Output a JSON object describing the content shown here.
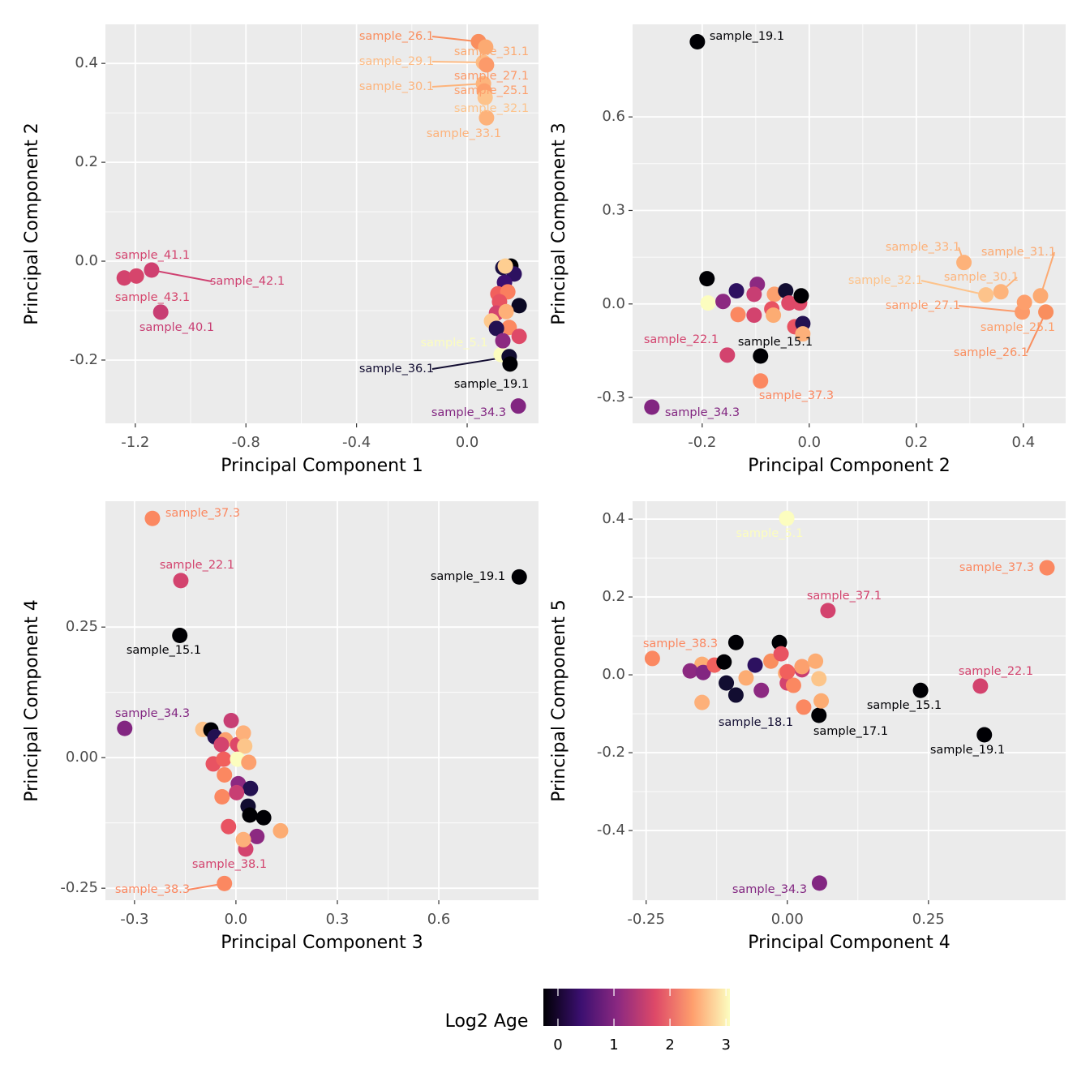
{
  "chart_data": [
    {
      "type": "scatter",
      "xlabel": "Principal Component 1",
      "ylabel": "Principal Component 2",
      "xlim": [
        -1.308,
        0.258
      ],
      "ylim": [
        -0.328,
        0.479
      ],
      "xticks": [
        -1.2,
        -0.8,
        -0.4,
        {
          "value": 0,
          "label": "0.0"
        }
      ],
      "yticks": [
        -0.2,
        {
          "value": 0,
          "label": "0.0"
        },
        0.2,
        0.4
      ],
      "x": [
        0.041,
        0.067,
        0.059,
        0.07,
        0.059,
        0.062,
        0.065,
        0.07,
        -1.24,
        -1.141,
        -1.196,
        -1.108,
        0.123,
        0.152,
        0.155,
        0.185,
        0.158,
        0.129,
        0.17,
        0.135,
        0.111,
        0.147,
        0.117,
        0.188,
        0.106,
        0.141,
        0.088,
        0.152,
        0.106,
        0.188,
        0.129,
        0.138
      ],
      "y": [
        0.444,
        0.433,
        0.402,
        0.397,
        0.359,
        0.344,
        0.331,
        0.29,
        -0.034,
        -0.018,
        -0.03,
        -0.103,
        -0.189,
        -0.193,
        -0.208,
        -0.293,
        -0.01,
        -0.013,
        -0.026,
        -0.043,
        -0.066,
        -0.062,
        -0.082,
        -0.09,
        -0.105,
        -0.102,
        -0.121,
        -0.134,
        -0.136,
        -0.152,
        -0.161,
        -0.01
      ],
      "colors": [
        "#f98e5e",
        "#fcaa72",
        "#fdbb84",
        "#fc9a6a",
        "#fdb47c",
        "#fd9f6c",
        "#fdc38b",
        "#fdb27a",
        "#d3436e",
        "#cf4070",
        "#d6456c",
        "#c83e73",
        "#fcfdbf",
        "#120d31",
        "#000004",
        "#822681",
        "#000004",
        "#1a1042",
        "#2d1160",
        "#3b0f70",
        "#f1605d",
        "#fa7f5e",
        "#e85362",
        "#0b0924",
        "#d3436e",
        "#feb078",
        "#fec98d",
        "#fc8961",
        "#231151",
        "#de4968",
        "#8c2981",
        "#fece91"
      ],
      "labels": [
        "sample_26.1",
        "sample_31.1",
        "sample_29.1",
        "sample_27.1",
        "sample_30.1",
        "sample_25.1",
        "sample_32.1",
        "sample_33.1",
        "sample_41.1",
        "sample_42.1",
        "sample_43.1",
        "sample_40.1",
        "sample_5.1",
        "sample_36.1",
        "sample_19.1",
        "sample_34.3",
        null,
        null,
        null,
        null,
        null,
        null,
        null,
        null,
        null,
        null,
        null,
        null,
        null,
        null,
        null,
        null
      ]
    },
    {
      "type": "scatter",
      "xlabel": "Principal Component 2",
      "ylabel": "Principal Component 3",
      "xlim": [
        -0.33,
        0.479
      ],
      "ylim": [
        -0.383,
        0.897
      ],
      "xticks": [
        -0.2,
        {
          "value": 0,
          "label": "0.0"
        },
        0.2,
        0.4
      ],
      "yticks": [
        -0.3,
        {
          "value": 0,
          "label": "0.0"
        },
        0.3,
        0.6
      ],
      "x": [
        -0.209,
        0.289,
        0.432,
        0.358,
        0.33,
        0.398,
        0.402,
        0.442,
        -0.153,
        -0.091,
        -0.091,
        -0.294,
        -0.191,
        -0.189,
        -0.136,
        -0.133,
        -0.097,
        -0.103,
        -0.103,
        -0.065,
        -0.07,
        -0.067,
        -0.044,
        -0.038,
        -0.018,
        -0.015,
        -0.027,
        -0.012,
        -0.012,
        -0.161
      ],
      "y": [
        0.841,
        0.133,
        0.026,
        0.039,
        0.029,
        -0.026,
        0.005,
        -0.026,
        -0.164,
        -0.167,
        -0.247,
        -0.331,
        0.081,
        0.003,
        0.042,
        -0.034,
        0.063,
        0.031,
        -0.036,
        0.031,
        -0.016,
        -0.036,
        0.042,
        0.003,
        0.003,
        0.026,
        -0.073,
        -0.063,
        -0.096,
        0.008
      ],
      "colors": [
        "#000004",
        "#fdb27a",
        "#fcaa72",
        "#fdb47c",
        "#fdc38b",
        "#fc9a6a",
        "#fd9f6c",
        "#f98e5e",
        "#d3436e",
        "#000004",
        "#fb8861",
        "#822681",
        "#000004",
        "#fcfdbf",
        "#2d1160",
        "#fb8861",
        "#8c2981",
        "#c83e73",
        "#d3436e",
        "#fca06e",
        "#e85362",
        "#fcac73",
        "#120d31",
        "#de4968",
        "#de4968",
        "#000004",
        "#e85362",
        "#231151",
        "#fdb07a",
        "#8c2981"
      ],
      "labels": [
        "sample_19.1",
        "sample_33.1",
        "sample_31.1",
        "sample_30.1",
        "sample_32.1",
        "sample_27.1",
        "sample_25.1",
        "sample_26.1",
        "sample_22.1",
        "sample_15.1",
        "sample_37.3",
        "sample_34.3",
        null,
        null,
        null,
        null,
        null,
        null,
        null,
        null,
        null,
        null,
        null,
        null,
        null,
        null,
        null,
        null,
        null,
        null
      ]
    },
    {
      "type": "scatter",
      "xlabel": "Principal Component 3",
      "ylabel": "Principal Component 4",
      "xlim": [
        -0.386,
        0.895
      ],
      "ylim": [
        -0.273,
        0.491
      ],
      "xticks": [
        -0.3,
        {
          "value": 0,
          "label": "0.0"
        },
        0.3,
        0.6
      ],
      "yticks": [
        -0.25,
        {
          "value": 0,
          "label": "0.00"
        },
        0.25
      ],
      "x": [
        -0.247,
        -0.163,
        0.838,
        -0.166,
        -0.329,
        0.029,
        -0.034,
        -0.098,
        -0.074,
        -0.062,
        -0.014,
        -0.031,
        -0.043,
        0.005,
        0.022,
        0.026,
        -0.067,
        -0.036,
        0.005,
        0.038,
        -0.034,
        0.007,
        0.043,
        -0.041,
        0.002,
        0.036,
        0.041,
        0.082,
        -0.022,
        0.062,
        0.132,
        0.022
      ],
      "y": [
        0.458,
        0.339,
        0.346,
        0.234,
        0.056,
        -0.175,
        -0.241,
        0.054,
        0.053,
        0.04,
        0.071,
        0.034,
        0.025,
        0.025,
        0.047,
        0.022,
        -0.012,
        -0.003,
        -0.003,
        -0.009,
        -0.033,
        -0.05,
        -0.059,
        -0.075,
        -0.067,
        -0.093,
        -0.11,
        -0.115,
        -0.132,
        -0.151,
        -0.14,
        -0.157
      ],
      "colors": [
        "#fb8861",
        "#d3436e",
        "#000004",
        "#000004",
        "#822681",
        "#d3436e",
        "#fb8861",
        "#fdc38b",
        "#000004",
        "#231151",
        "#c83e73",
        "#fca06e",
        "#d3436e",
        "#de4968",
        "#fdb07a",
        "#fcc58a",
        "#e85362",
        "#f1605d",
        "#fcfdbf",
        "#fca06e",
        "#fb8861",
        "#8c2981",
        "#231151",
        "#fb8861",
        "#c83e73",
        "#120d31",
        "#000004",
        "#000004",
        "#e85362",
        "#8c2981",
        "#fcac73",
        "#fdb07a"
      ],
      "labels": [
        "sample_37.3",
        "sample_22.1",
        "sample_19.1",
        "sample_15.1",
        "sample_34.3",
        "sample_38.1",
        "sample_38.3",
        null,
        null,
        null,
        null,
        null,
        null,
        null,
        null,
        null,
        null,
        null,
        null,
        null,
        null,
        null,
        null,
        null,
        null,
        null,
        null,
        null,
        null,
        null,
        null,
        null
      ]
    },
    {
      "type": "scatter",
      "xlabel": "Principal Component 4",
      "ylabel": "Principal Component 5",
      "xlim": [
        -0.274,
        0.493
      ],
      "ylim": [
        -0.579,
        0.446
      ],
      "xticks": [
        -0.25,
        {
          "value": 0,
          "label": "0.00"
        },
        0.25
      ],
      "yticks": [
        -0.4,
        -0.2,
        {
          "value": 0,
          "label": "0.0"
        },
        0.2,
        0.4
      ],
      "x": [
        -0.001,
        0.46,
        0.072,
        -0.239,
        0.342,
        0.236,
        0.349,
        -0.091,
        0.056,
        0.057,
        -0.091,
        -0.014,
        -0.151,
        -0.172,
        -0.149,
        -0.129,
        -0.112,
        -0.108,
        -0.151,
        -0.073,
        -0.057,
        -0.046,
        -0.029,
        -0.011,
        -0.003,
        0.0,
        0.011,
        0.026,
        0.026,
        0.029,
        0.05,
        0.056,
        0.06,
        0.0
      ],
      "y": [
        0.402,
        0.275,
        0.165,
        0.042,
        -0.029,
        -0.04,
        -0.154,
        -0.052,
        -0.104,
        -0.535,
        0.083,
        0.083,
        0.027,
        0.01,
        0.006,
        0.025,
        0.033,
        -0.021,
        -0.071,
        -0.008,
        0.025,
        -0.04,
        0.035,
        0.054,
        0.004,
        -0.021,
        -0.027,
        0.013,
        0.021,
        -0.083,
        0.035,
        -0.01,
        -0.067,
        0.008
      ],
      "colors": [
        "#fcfdbf",
        "#fb8861",
        "#d3436e",
        "#fb8861",
        "#d3436e",
        "#000004",
        "#000004",
        "#120d31",
        "#000004",
        "#822681",
        "#000004",
        "#000004",
        "#fcac73",
        "#8c2981",
        "#822681",
        "#f1605d",
        "#000004",
        "#120d31",
        "#fdb07a",
        "#fcac73",
        "#2d1160",
        "#8c2981",
        "#f98e5e",
        "#e85362",
        "#fcac73",
        "#d3436e",
        "#fb8861",
        "#c83e73",
        "#fca06e",
        "#fb8861",
        "#fcac73",
        "#fcc58a",
        "#fcac73",
        "#f1605d"
      ],
      "labels": [
        "sample_5.1",
        "sample_37.3",
        "sample_37.1",
        "sample_38.3",
        "sample_22.1",
        "sample_15.1",
        "sample_19.1",
        "sample_18.1",
        "sample_17.1",
        "sample_34.3",
        null,
        null,
        null,
        null,
        null,
        null,
        null,
        null,
        null,
        null,
        null,
        null,
        null,
        null,
        null,
        null,
        null,
        null,
        null,
        null,
        null,
        null,
        null,
        null
      ]
    }
  ],
  "legend": {
    "title": "Log2 Age",
    "lim": [
      -0.26,
      3.07
    ],
    "ticks": [
      0,
      1,
      2,
      3
    ],
    "colormap": [
      "#000004",
      "#3b0f70",
      "#8c2981",
      "#de4968",
      "#fe9f6d",
      "#fcfdbf"
    ]
  }
}
